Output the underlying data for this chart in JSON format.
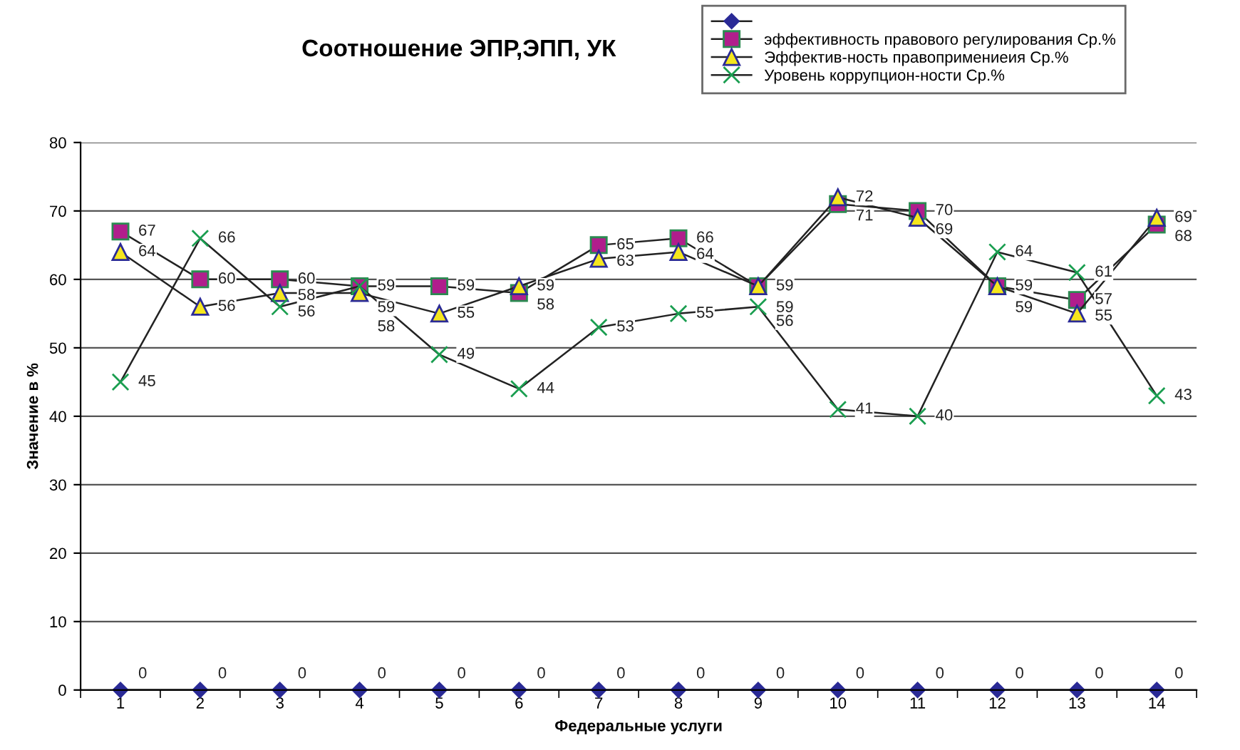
{
  "chart_data": {
    "type": "line",
    "title": "Соотношение ЭПР,ЭПП, УК",
    "xlabel": "Федеральные услуги",
    "ylabel": "Значение в %",
    "categories": [
      "1",
      "2",
      "3",
      "4",
      "5",
      "6",
      "7",
      "8",
      "9",
      "10",
      "11",
      "12",
      "13",
      "14"
    ],
    "series": [
      {
        "color": "#2a2a96",
        "marker": "diamond",
        "values": [
          0,
          0,
          0,
          0,
          0,
          0,
          0,
          0,
          0,
          0,
          0,
          0,
          0,
          0
        ]
      },
      {
        "name": "эффективность правового регулирования Ср.%",
        "color": "#b01e8c",
        "marker": "square",
        "values": [
          67,
          60,
          60,
          59,
          59,
          58,
          65,
          66,
          59,
          71,
          70,
          59,
          57,
          68
        ]
      },
      {
        "name": "Эффектив-ность правопримениеия Ср.%",
        "color": "#f5e61e",
        "marker": "triangle",
        "values": [
          64,
          56,
          58,
          58,
          55,
          59,
          63,
          64,
          59,
          72,
          69,
          59,
          55,
          69
        ]
      },
      {
        "name": "Уровень коррупцион-ности Ср.%",
        "color": "#1a9e50",
        "marker": "cross",
        "values": [
          45,
          66,
          56,
          59,
          49,
          44,
          53,
          55,
          56,
          41,
          40,
          64,
          61,
          43
        ]
      }
    ],
    "ylim": [
      0,
      80
    ],
    "yticks": [
      0,
      10,
      20,
      30,
      40,
      50,
      60,
      70,
      80
    ],
    "grid": "y",
    "legend": "top right",
    "data_labels": true,
    "line_style": "solid"
  }
}
